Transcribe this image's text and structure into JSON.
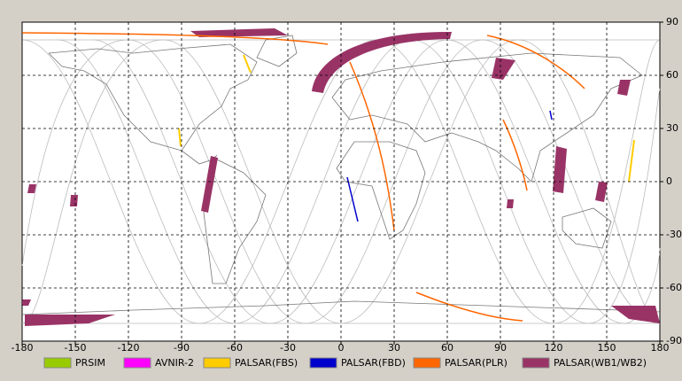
{
  "chart_data": {
    "type": "map",
    "xlim": [
      -180,
      180
    ],
    "ylim": [
      -90,
      90
    ],
    "xticks": [
      -180,
      -150,
      -120,
      -90,
      -60,
      -30,
      0,
      30,
      60,
      90,
      120,
      150,
      180
    ],
    "yticks": [
      -90,
      -60,
      -30,
      0,
      30,
      60,
      90
    ],
    "grid": true,
    "series": [
      {
        "name": "PRSIM",
        "color": "#99cc00"
      },
      {
        "name": "AVNIR-2",
        "color": "#ff00ff"
      },
      {
        "name": "PALSAR(FBS)",
        "color": "#ffcc00"
      },
      {
        "name": "PALSAR(FBD)",
        "color": "#0000cc"
      },
      {
        "name": "PALSAR(PLR)",
        "color": "#ff6600"
      },
      {
        "name": "PALSAR(WB1/WB2)",
        "color": "#993366"
      }
    ]
  }
}
